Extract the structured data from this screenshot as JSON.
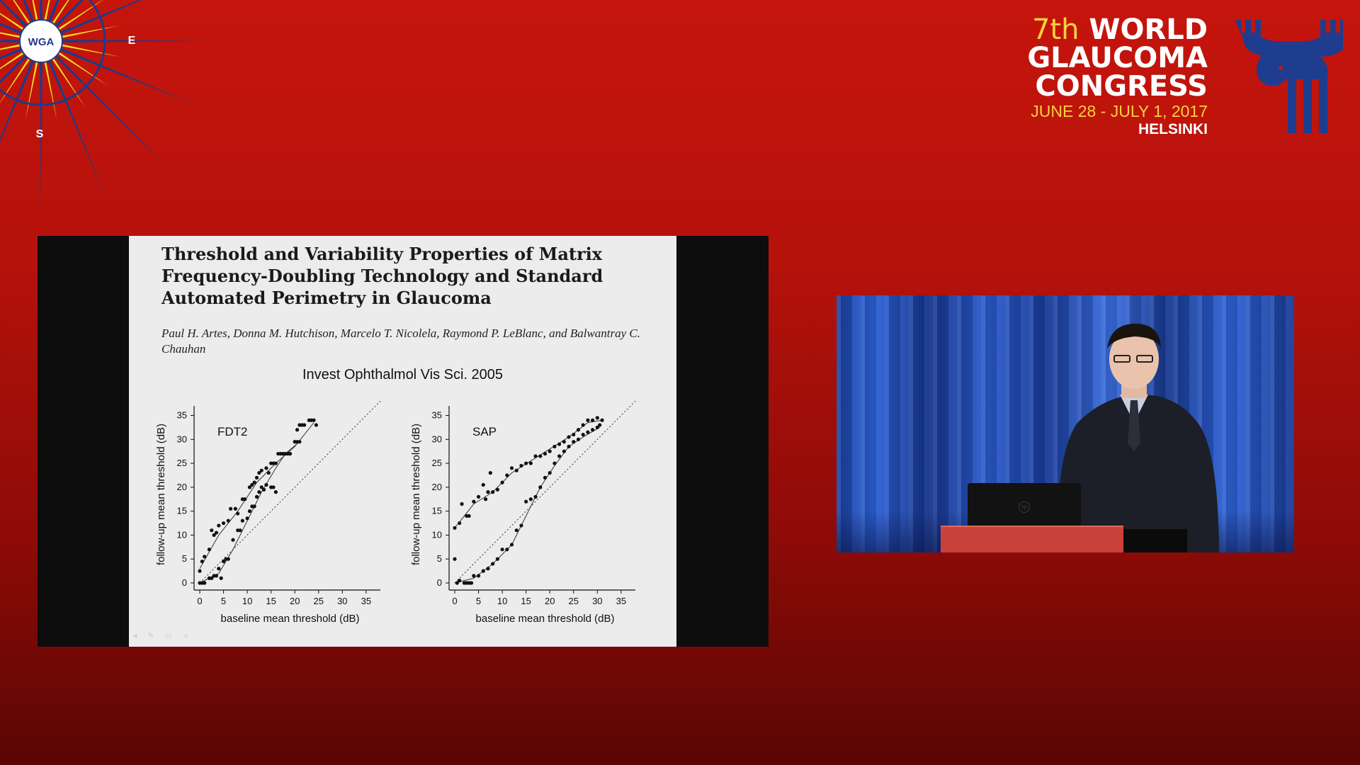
{
  "logo_left": {
    "text": "WGA",
    "letters": [
      "E",
      "S"
    ],
    "colors": {
      "rays_blue": "#1f3a8a",
      "rays_yellow": "#f3e11c",
      "center": "#ffffff"
    }
  },
  "congress": {
    "ordinal": "7th",
    "line1": "WORLD",
    "line2": "GLAUCOMA",
    "line3": "CONGRESS",
    "dates": "JUNE 28 - JULY 1, 2017",
    "city": "HELSINKI",
    "colors": {
      "accent": "#f6d23b",
      "moose": "#1e3d8f"
    }
  },
  "slide": {
    "title": "Threshold and Variability Properties of Matrix Frequency-Doubling Technology and Standard Automated Perimetry in Glaucoma",
    "authors": "Paul H. Artes, Donna M. Hutchison, Marcelo T. Nicolela, Raymond P. LeBlanc, and Balwantray C. Chauhan",
    "journal": "Invest Ophthalmol Vis Sci. 2005"
  },
  "video": {
    "icon": "hp-logo-icon",
    "colors": {
      "curtain": "#2c5fd4",
      "podium": "#c9413a"
    }
  },
  "chart_data": [
    {
      "type": "scatter",
      "title": "FDT2",
      "xlabel": "baseline mean threshold (dB)",
      "ylabel": "follow-up mean threshold (dB)",
      "xlim": [
        0,
        38
      ],
      "ylim": [
        0,
        37
      ],
      "xticks": [
        0,
        5,
        10,
        15,
        20,
        25,
        30,
        35
      ],
      "yticks": [
        0,
        5,
        10,
        15,
        20,
        25,
        30,
        35
      ],
      "reference_line": "identity (dotted)",
      "series": [
        {
          "points": [
            [
              0,
              2.5
            ],
            [
              0.5,
              4.5
            ],
            [
              1,
              5.5
            ],
            [
              2,
              7
            ],
            [
              2.5,
              11
            ],
            [
              3,
              10
            ],
            [
              3.5,
              10.5
            ],
            [
              4,
              12
            ],
            [
              5,
              12.5
            ],
            [
              6,
              13
            ],
            [
              6.5,
              15.5
            ],
            [
              7.5,
              15.5
            ],
            [
              8,
              14.5
            ],
            [
              9,
              17.5
            ],
            [
              9.5,
              17.5
            ],
            [
              10.5,
              20
            ],
            [
              11,
              20.5
            ],
            [
              11.5,
              21
            ],
            [
              12,
              22
            ],
            [
              12.5,
              23
            ],
            [
              13,
              23.5
            ],
            [
              14,
              24
            ],
            [
              15,
              25
            ],
            [
              15.5,
              25
            ],
            [
              16,
              25
            ],
            [
              17,
              27
            ],
            [
              17.5,
              27
            ],
            [
              18.5,
              27
            ],
            [
              19,
              27
            ],
            [
              20,
              29.5
            ],
            [
              20.5,
              32
            ],
            [
              21,
              33
            ],
            [
              21.5,
              33
            ],
            [
              22,
              33
            ],
            [
              23,
              34
            ],
            [
              23.5,
              34
            ],
            [
              24,
              34
            ],
            [
              24.5,
              33
            ]
          ],
          "trend": [
            [
              0,
              3
            ],
            [
              4,
              10
            ],
            [
              8,
              15
            ],
            [
              12,
              21
            ],
            [
              16,
              25
            ],
            [
              20,
              28.5
            ],
            [
              24,
              33.5
            ]
          ]
        },
        {
          "points": [
            [
              0,
              0
            ],
            [
              0.5,
              0
            ],
            [
              1,
              0
            ],
            [
              2,
              1
            ],
            [
              2.5,
              1
            ],
            [
              3,
              1.5
            ],
            [
              3.5,
              1.5
            ],
            [
              4,
              3
            ],
            [
              4.5,
              1
            ],
            [
              5,
              4.5
            ],
            [
              5.5,
              5
            ],
            [
              6,
              5
            ],
            [
              7,
              9
            ],
            [
              8,
              11
            ],
            [
              8.5,
              11
            ],
            [
              9,
              13
            ],
            [
              10,
              13.5
            ],
            [
              10.5,
              15
            ],
            [
              11,
              16
            ],
            [
              11.5,
              16
            ],
            [
              12,
              18
            ],
            [
              12.5,
              19
            ],
            [
              13,
              20
            ],
            [
              13.5,
              19.5
            ],
            [
              14,
              20.5
            ],
            [
              14.5,
              23
            ],
            [
              15,
              20
            ],
            [
              15.5,
              20
            ],
            [
              16,
              19
            ],
            [
              16.5,
              27
            ],
            [
              17,
              27
            ],
            [
              17.5,
              27
            ],
            [
              18,
              27
            ],
            [
              18.5,
              27
            ],
            [
              19,
              27
            ],
            [
              20,
              29.5
            ],
            [
              20.5,
              29.5
            ],
            [
              21,
              29.5
            ]
          ],
          "trend": [
            [
              0,
              0
            ],
            [
              4,
              2
            ],
            [
              7,
              7
            ],
            [
              10,
              13
            ],
            [
              13,
              19
            ],
            [
              16,
              24
            ],
            [
              18,
              27
            ],
            [
              21,
              29.5
            ]
          ]
        }
      ]
    },
    {
      "type": "scatter",
      "title": "SAP",
      "xlabel": "baseline mean threshold (dB)",
      "ylabel": "follow-up mean threshold (dB)",
      "xlim": [
        0,
        38
      ],
      "ylim": [
        0,
        37
      ],
      "xticks": [
        0,
        5,
        10,
        15,
        20,
        25,
        30,
        35
      ],
      "yticks": [
        0,
        5,
        10,
        15,
        20,
        25,
        30,
        35
      ],
      "reference_line": "identity (dotted)",
      "series": [
        {
          "points": [
            [
              0,
              11.5
            ],
            [
              1,
              12.5
            ],
            [
              1.5,
              16.5
            ],
            [
              2.5,
              14
            ],
            [
              3,
              14
            ],
            [
              4,
              17
            ],
            [
              5,
              18
            ],
            [
              6,
              20.5
            ],
            [
              6.5,
              17.5
            ],
            [
              7,
              19
            ],
            [
              7.5,
              23
            ],
            [
              8,
              19
            ],
            [
              9,
              19.5
            ],
            [
              10,
              21
            ],
            [
              11,
              22.5
            ],
            [
              12,
              24
            ],
            [
              13,
              23.5
            ],
            [
              14,
              24.5
            ],
            [
              15,
              25
            ],
            [
              16,
              25
            ],
            [
              17,
              26.5
            ],
            [
              18,
              26.5
            ],
            [
              19,
              27
            ],
            [
              20,
              27.5
            ],
            [
              21,
              28.5
            ],
            [
              22,
              29
            ],
            [
              23,
              29.5
            ],
            [
              24,
              30.5
            ],
            [
              25,
              31
            ],
            [
              26,
              32
            ],
            [
              27,
              33
            ],
            [
              28,
              34
            ],
            [
              29,
              34
            ],
            [
              30,
              34.5
            ],
            [
              31,
              34
            ]
          ],
          "trend": [
            [
              0,
              11.5
            ],
            [
              4,
              16.5
            ],
            [
              8,
              19
            ],
            [
              12,
              23
            ],
            [
              16,
              25.5
            ],
            [
              20,
              28
            ],
            [
              24,
              30.5
            ],
            [
              28,
              33.5
            ],
            [
              31,
              34
            ]
          ]
        },
        {
          "points": [
            [
              0,
              5
            ],
            [
              0.5,
              0
            ],
            [
              1,
              0.5
            ],
            [
              2,
              0
            ],
            [
              2.5,
              0
            ],
            [
              3,
              0
            ],
            [
              3.5,
              0
            ],
            [
              4,
              1.5
            ],
            [
              5,
              1.5
            ],
            [
              6,
              2.5
            ],
            [
              7,
              3
            ],
            [
              8,
              4
            ],
            [
              9,
              5
            ],
            [
              10,
              7
            ],
            [
              11,
              7
            ],
            [
              12,
              8
            ],
            [
              13,
              11
            ],
            [
              14,
              12
            ],
            [
              15,
              17
            ],
            [
              16,
              17.5
            ],
            [
              17,
              18
            ],
            [
              18,
              20
            ],
            [
              19,
              22
            ],
            [
              20,
              23
            ],
            [
              21,
              25
            ],
            [
              22,
              26.5
            ],
            [
              23,
              27.5
            ],
            [
              24,
              28.5
            ],
            [
              25,
              29.5
            ],
            [
              26,
              30
            ],
            [
              27,
              31
            ],
            [
              28,
              31.5
            ],
            [
              29,
              32
            ],
            [
              30,
              32.5
            ],
            [
              30.5,
              33
            ]
          ],
          "trend": [
            [
              0,
              0
            ],
            [
              4,
              1
            ],
            [
              8,
              4
            ],
            [
              12,
              8
            ],
            [
              15,
              14
            ],
            [
              18,
              20
            ],
            [
              21,
              24.5
            ],
            [
              24,
              28.5
            ],
            [
              27,
              30.5
            ],
            [
              30.5,
              32.5
            ]
          ]
        }
      ]
    }
  ]
}
